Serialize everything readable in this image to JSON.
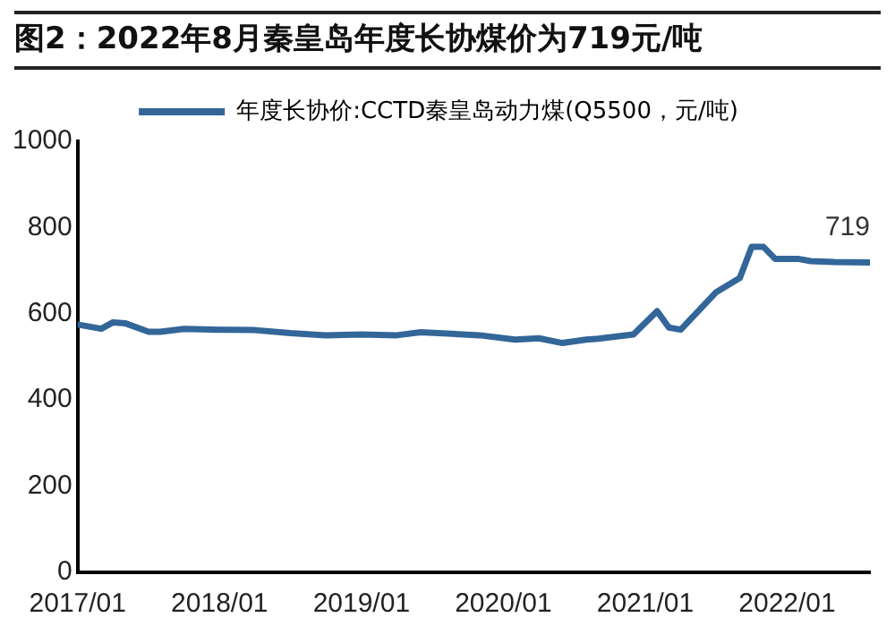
{
  "chart_data": {
    "type": "line",
    "title": "图2：2022年8月秦皇岛年度长协煤价为719元/吨",
    "x": [
      "2017-01",
      "2017-03",
      "2017-04",
      "2017-05",
      "2017-07",
      "2017-08",
      "2017-10",
      "2018-01",
      "2018-04",
      "2018-07",
      "2018-10",
      "2019-01",
      "2019-04",
      "2019-06",
      "2019-11",
      "2020-02",
      "2020-04",
      "2020-06",
      "2020-08",
      "2020-09",
      "2020-12",
      "2021-02",
      "2021-03",
      "2021-04",
      "2021-07",
      "2021-09",
      "2021-10",
      "2021-11",
      "2021-12",
      "2022-02",
      "2022-03",
      "2022-05",
      "2022-08"
    ],
    "series": [
      {
        "name": "年度长协价:CCTD秦皇岛动力煤(Q5500，元/吨)",
        "color": "#336699",
        "values": [
          575,
          565,
          580,
          578,
          558,
          558,
          565,
          563,
          562,
          555,
          550,
          552,
          550,
          557,
          550,
          540,
          543,
          532,
          540,
          542,
          552,
          606,
          568,
          563,
          650,
          683,
          755,
          755,
          727,
          727,
          722,
          720,
          719
        ]
      }
    ],
    "xlim": [
      "2017-01",
      "2022-08"
    ],
    "xticks": [
      {
        "value": "2017-01",
        "label": "2017/01"
      },
      {
        "value": "2018-01",
        "label": "2018/01"
      },
      {
        "value": "2019-01",
        "label": "2019/01"
      },
      {
        "value": "2020-01",
        "label": "2020/01"
      },
      {
        "value": "2021-01",
        "label": "2021/01"
      },
      {
        "value": "2022-01",
        "label": "2022/01"
      }
    ],
    "ylim": [
      0,
      1000
    ],
    "yticks": [
      0,
      200,
      400,
      600,
      800,
      1000
    ],
    "annotations": [
      {
        "text": "719",
        "x": "2022-08",
        "y": 719
      }
    ],
    "grid": false,
    "legend": "top",
    "marker": "none",
    "line_style": "solid"
  }
}
